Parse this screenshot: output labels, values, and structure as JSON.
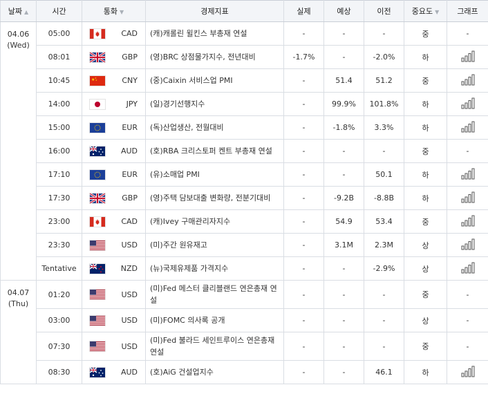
{
  "columns": {
    "date": "날짜",
    "time": "시간",
    "currency": "통화",
    "indicator": "경제지표",
    "actual": "실제",
    "forecast": "예상",
    "previous": "이전",
    "importance": "중요도",
    "graph": "그래프"
  },
  "days": [
    {
      "date": "04.06",
      "weekday": "(Wed)"
    },
    {
      "date": "04.07",
      "weekday": "(Thu)"
    }
  ],
  "rows": [
    {
      "time": "05:00",
      "flag": "canada-flag",
      "currency": "CAD",
      "event": "(캐)캐롤린 윌킨스 부총재 연설",
      "actual": "-",
      "forecast": "-",
      "previous": "-",
      "importance": "중",
      "graph": "-"
    },
    {
      "time": "08:01",
      "flag": "uk-flag",
      "currency": "GBP",
      "event": "(영)BRC 상점물가지수, 전년대비",
      "actual": "-1.7%",
      "forecast": "-",
      "previous": "-2.0%",
      "importance": "하",
      "graph": "bar-chart-icon"
    },
    {
      "time": "10:45",
      "flag": "china-flag",
      "currency": "CNY",
      "event": "(중)Caixin 서비스업 PMI",
      "actual": "-",
      "forecast": "51.4",
      "previous": "51.2",
      "importance": "중",
      "graph": "bar-chart-icon"
    },
    {
      "time": "14:00",
      "flag": "japan-flag",
      "currency": "JPY",
      "event": "(일)경기선행지수",
      "actual": "-",
      "forecast": "99.9%",
      "previous": "101.8%",
      "importance": "하",
      "graph": "bar-chart-icon"
    },
    {
      "time": "15:00",
      "flag": "eu-flag",
      "currency": "EUR",
      "event": "(독)산업생산, 전월대비",
      "actual": "-",
      "forecast": "-1.8%",
      "previous": "3.3%",
      "importance": "하",
      "graph": "bar-chart-icon"
    },
    {
      "time": "16:00",
      "flag": "australia-flag",
      "currency": "AUD",
      "event": "(호)RBA 크리스토퍼 켄트 부총재 연설",
      "actual": "-",
      "forecast": "-",
      "previous": "-",
      "importance": "중",
      "graph": "-"
    },
    {
      "time": "17:10",
      "flag": "eu-flag",
      "currency": "EUR",
      "event": "(유)소매업 PMI",
      "actual": "-",
      "forecast": "-",
      "previous": "50.1",
      "importance": "하",
      "graph": "bar-chart-icon"
    },
    {
      "time": "17:30",
      "flag": "uk-flag",
      "currency": "GBP",
      "event": "(영)주택 담보대출 변화량, 전분기대비",
      "actual": "-",
      "forecast": "-9.2B",
      "previous": "-8.8B",
      "importance": "하",
      "graph": "bar-chart-icon"
    },
    {
      "time": "23:00",
      "flag": "canada-flag",
      "currency": "CAD",
      "event": "(캐)Ivey 구매관리자지수",
      "actual": "-",
      "forecast": "54.9",
      "previous": "53.4",
      "importance": "중",
      "graph": "bar-chart-icon"
    },
    {
      "time": "23:30",
      "flag": "usa-flag",
      "currency": "USD",
      "event": "(미)주간 원유재고",
      "actual": "-",
      "forecast": "3.1M",
      "previous": "2.3M",
      "importance": "상",
      "graph": "bar-chart-icon"
    },
    {
      "time": "Tentative",
      "flag": "nz-flag",
      "currency": "NZD",
      "event": "(뉴)국제유제품 가격지수",
      "actual": "-",
      "forecast": "-",
      "previous": "-2.9%",
      "importance": "상",
      "graph": "bar-chart-icon"
    },
    {
      "time": "01:20",
      "flag": "usa-flag",
      "currency": "USD",
      "event": "(미)Fed 메스터 클리블랜드 연은총재 연설",
      "actual": "-",
      "forecast": "-",
      "previous": "-",
      "importance": "중",
      "graph": "-"
    },
    {
      "time": "03:00",
      "flag": "usa-flag",
      "currency": "USD",
      "event": "(미)FOMC 의사록 공개",
      "actual": "-",
      "forecast": "-",
      "previous": "-",
      "importance": "상",
      "graph": "-"
    },
    {
      "time": "07:30",
      "flag": "usa-flag",
      "currency": "USD",
      "event": "(미)Fed 불라드 세인트루이스 연은총재 연설",
      "actual": "-",
      "forecast": "-",
      "previous": "-",
      "importance": "중",
      "graph": "-"
    },
    {
      "time": "08:30",
      "flag": "australia-flag",
      "currency": "AUD",
      "event": "(호)AiG 건설업지수",
      "actual": "-",
      "forecast": "-",
      "previous": "46.1",
      "importance": "하",
      "graph": "bar-chart-icon"
    }
  ]
}
